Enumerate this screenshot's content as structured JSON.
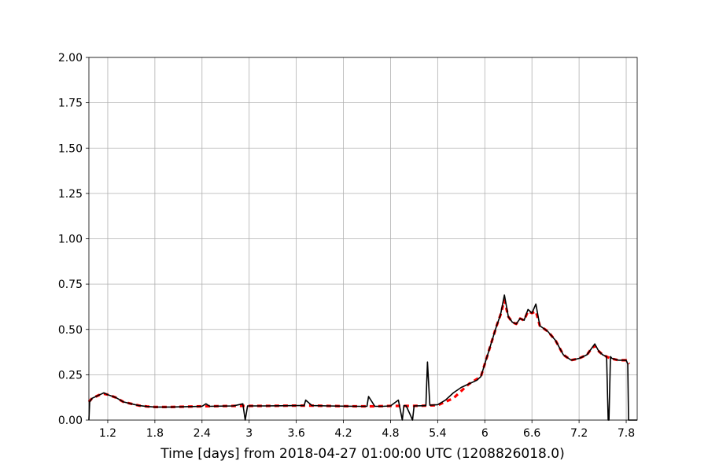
{
  "chart_data": {
    "type": "line",
    "title": "",
    "xlabel": "Time [days] from 2018-04-27 01:00:00 UTC (1208826018.0)",
    "ylabel": "",
    "xlim": [
      0.96,
      7.94
    ],
    "ylim": [
      0.0,
      2.0
    ],
    "grid": true,
    "x_ticks": [
      1.2,
      1.8,
      2.4,
      3.0,
      3.6,
      4.2,
      4.8,
      5.4,
      6.0,
      6.6,
      7.2,
      7.8
    ],
    "x_tick_labels": [
      "1.2",
      "1.8",
      "2.4",
      "3",
      "3.6",
      "4.2",
      "4.8",
      "5.4",
      "6",
      "6.6",
      "7.2",
      "7.8"
    ],
    "y_ticks": [
      0.0,
      0.25,
      0.5,
      0.75,
      1.0,
      1.25,
      1.5,
      1.75,
      2.0
    ],
    "y_tick_labels": [
      "0.00",
      "0.25",
      "0.50",
      "0.75",
      "1.00",
      "1.25",
      "1.50",
      "1.75",
      "2.00"
    ],
    "colors": {
      "primary": "#ff0000",
      "secondary": "#000000"
    },
    "series": [
      {
        "color": "#ff0000",
        "x": [
          0.96,
          1.0,
          1.05,
          1.1,
          1.15,
          1.2,
          1.3,
          1.4,
          1.5,
          1.6,
          1.7,
          1.8,
          1.9,
          2.0,
          2.2,
          2.4,
          2.6,
          2.8,
          3.0,
          3.2,
          3.4,
          3.6,
          3.8,
          4.0,
          4.2,
          4.4,
          4.6,
          4.8,
          5.0,
          5.2,
          5.4,
          5.6,
          5.8,
          5.95,
          6.05,
          6.15,
          6.2,
          6.25,
          6.3,
          6.35,
          6.4,
          6.45,
          6.5,
          6.55,
          6.6,
          6.65,
          6.7,
          6.8,
          6.9,
          7.0,
          7.1,
          7.2,
          7.3,
          7.35,
          7.4,
          7.45,
          7.5,
          7.6,
          7.7,
          7.8,
          7.84
        ],
        "y": [
          0.1,
          0.12,
          0.13,
          0.14,
          0.145,
          0.14,
          0.125,
          0.1,
          0.09,
          0.08,
          0.075,
          0.072,
          0.072,
          0.072,
          0.074,
          0.076,
          0.077,
          0.078,
          0.078,
          0.078,
          0.079,
          0.08,
          0.08,
          0.078,
          0.077,
          0.076,
          0.076,
          0.078,
          0.078,
          0.079,
          0.082,
          0.12,
          0.2,
          0.24,
          0.38,
          0.52,
          0.58,
          0.66,
          0.57,
          0.54,
          0.53,
          0.56,
          0.55,
          0.6,
          0.59,
          0.6,
          0.52,
          0.49,
          0.44,
          0.36,
          0.33,
          0.34,
          0.36,
          0.39,
          0.41,
          0.38,
          0.36,
          0.34,
          0.33,
          0.33,
          0.31
        ]
      },
      {
        "color": "#000000",
        "x": [
          0.96,
          0.97,
          1.0,
          1.05,
          1.1,
          1.15,
          1.2,
          1.3,
          1.4,
          1.5,
          1.6,
          1.7,
          1.8,
          1.9,
          2.0,
          2.2,
          2.4,
          2.45,
          2.5,
          2.6,
          2.8,
          2.92,
          2.95,
          2.98,
          3.0,
          3.2,
          3.4,
          3.6,
          3.7,
          3.72,
          3.8,
          4.0,
          4.2,
          4.4,
          4.5,
          4.52,
          4.6,
          4.7,
          4.8,
          4.9,
          4.95,
          4.97,
          5.0,
          5.05,
          5.08,
          5.1,
          5.2,
          5.25,
          5.27,
          5.3,
          5.4,
          5.5,
          5.6,
          5.7,
          5.8,
          5.9,
          5.95,
          6.05,
          6.15,
          6.2,
          6.25,
          6.3,
          6.35,
          6.4,
          6.45,
          6.5,
          6.55,
          6.6,
          6.65,
          6.7,
          6.8,
          6.9,
          7.0,
          7.1,
          7.2,
          7.3,
          7.35,
          7.4,
          7.45,
          7.5,
          7.55,
          7.57,
          7.58,
          7.6,
          7.62,
          7.7,
          7.8,
          7.82,
          7.83,
          7.86,
          7.94
        ],
        "y": [
          0.0,
          0.1,
          0.12,
          0.13,
          0.14,
          0.15,
          0.14,
          0.125,
          0.1,
          0.09,
          0.08,
          0.075,
          0.072,
          0.072,
          0.072,
          0.074,
          0.076,
          0.09,
          0.076,
          0.077,
          0.078,
          0.09,
          0.0,
          0.078,
          0.078,
          0.078,
          0.079,
          0.08,
          0.08,
          0.11,
          0.08,
          0.078,
          0.077,
          0.076,
          0.076,
          0.13,
          0.076,
          0.076,
          0.078,
          0.11,
          0.0,
          0.08,
          0.078,
          0.03,
          0.0,
          0.078,
          0.079,
          0.08,
          0.32,
          0.082,
          0.085,
          0.11,
          0.15,
          0.18,
          0.2,
          0.22,
          0.24,
          0.38,
          0.52,
          0.58,
          0.69,
          0.57,
          0.54,
          0.53,
          0.56,
          0.55,
          0.61,
          0.59,
          0.64,
          0.52,
          0.49,
          0.44,
          0.36,
          0.33,
          0.34,
          0.36,
          0.39,
          0.42,
          0.38,
          0.36,
          0.35,
          0.0,
          0.0,
          0.35,
          0.34,
          0.33,
          0.33,
          0.31,
          0.0,
          0.0,
          0.0
        ]
      }
    ]
  }
}
